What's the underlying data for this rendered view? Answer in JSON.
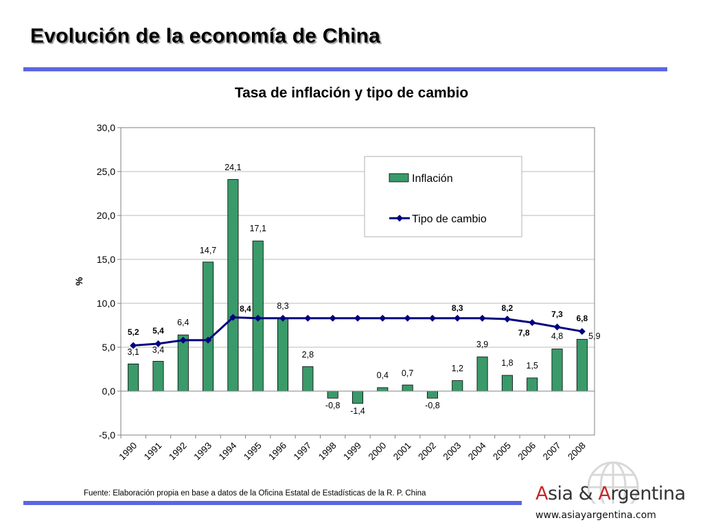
{
  "page": {
    "title": "Evolución de la economía de China",
    "source": "Fuente: Elaboración propia en base a datos de la Oficina Estatal de Estadísticas de la R. P. China"
  },
  "logo": {
    "brand_a1": "A",
    "brand_part1": "sia & ",
    "brand_a2": "A",
    "brand_part2": "rgentina",
    "website": "www.asiayargentina.com",
    "accent_color": "#c62828"
  },
  "chart_data": {
    "type": "bar",
    "title": "Tasa de inflación y tipo de cambio",
    "ylabel": "%",
    "xlabel": "",
    "ylim": [
      -5,
      30
    ],
    "yticks": [
      "30,0",
      "25,0",
      "20,0",
      "15,0",
      "10,0",
      "5,0",
      "0,0",
      "-5,0"
    ],
    "ytick_values": [
      30,
      25,
      20,
      15,
      10,
      5,
      0,
      -5
    ],
    "categories": [
      "1990",
      "1991",
      "1992",
      "1993",
      "1994",
      "1995",
      "1996",
      "1997",
      "1998",
      "1999",
      "2000",
      "2001",
      "2002",
      "2003",
      "2004",
      "2005",
      "2006",
      "2007",
      "2008"
    ],
    "grid": true,
    "legend_position": "top-right",
    "series": [
      {
        "name": "Inflación",
        "type": "bar",
        "color": "#3a9a6a",
        "values": [
          3.1,
          3.4,
          6.4,
          14.7,
          24.1,
          17.1,
          8.3,
          2.8,
          -0.8,
          -1.4,
          0.4,
          0.7,
          -0.8,
          1.2,
          3.9,
          1.8,
          1.5,
          4.8,
          5.9
        ],
        "labels": [
          "3,1",
          "3,4",
          "6,4",
          "14,7",
          "24,1",
          "17,1",
          "8,3",
          "2,8",
          "-0,8",
          "-1,4",
          "0,4",
          "0,7",
          "-0,8",
          "1,2",
          "3,9",
          "1,8",
          "1,5",
          "4,8",
          "5,9"
        ]
      },
      {
        "name": "Tipo de cambio",
        "type": "line",
        "color": "#000080",
        "values": [
          5.2,
          5.4,
          5.8,
          5.8,
          8.4,
          8.3,
          8.3,
          8.3,
          8.3,
          8.3,
          8.3,
          8.3,
          8.3,
          8.3,
          8.3,
          8.2,
          7.8,
          7.3,
          6.8
        ],
        "labels": [
          "5,2",
          "5,4",
          "",
          "",
          "8,4",
          "",
          "",
          "",
          "",
          "",
          "",
          "",
          "",
          "8,3",
          "",
          "8,2",
          "7,8",
          "7,3",
          "6,8"
        ]
      }
    ]
  }
}
